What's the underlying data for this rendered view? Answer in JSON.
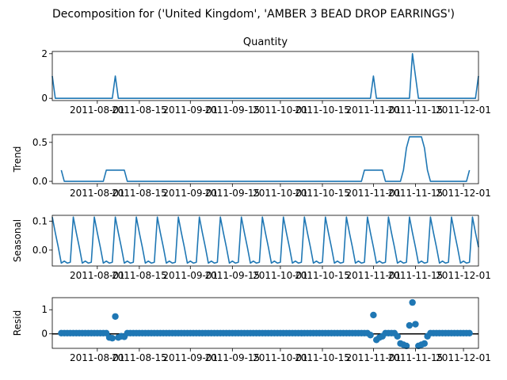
{
  "figure": {
    "suptitle": "Decomposition for ('United Kingdom', 'AMBER 3 BEAD DROP EARRINGS')"
  },
  "colors": {
    "series": "#1f77b4",
    "axes": "#000000",
    "zero_line": "#000000"
  },
  "chart_data": [
    {
      "type": "line",
      "title": "Quantity",
      "ylabel": "",
      "xlim": [
        "2011-07-17",
        "2011-12-06"
      ],
      "ylim": [
        -0.1,
        2.1
      ],
      "x_ticks": [
        "2011-08-01",
        "2011-08-15",
        "2011-09-01",
        "2011-09-15",
        "2011-10-01",
        "2011-10-15",
        "2011-11-01",
        "2011-11-15",
        "2011-12-01"
      ],
      "y_ticks": [
        0,
        2
      ],
      "series": [
        {
          "name": "",
          "points": [
            [
              "2011-07-17",
              1
            ],
            [
              "2011-07-18",
              0
            ],
            [
              "2011-08-06",
              0
            ],
            [
              "2011-08-07",
              1
            ],
            [
              "2011-08-08",
              0
            ],
            [
              "2011-10-31",
              0
            ],
            [
              "2011-11-01",
              1
            ],
            [
              "2011-11-02",
              0
            ],
            [
              "2011-11-13",
              0
            ],
            [
              "2011-11-14",
              2
            ],
            [
              "2011-11-16",
              0
            ],
            [
              "2011-12-05",
              0
            ],
            [
              "2011-12-06",
              1
            ]
          ]
        }
      ]
    },
    {
      "type": "line",
      "title": "",
      "ylabel": "Trend",
      "xlim": [
        "2011-07-17",
        "2011-12-06"
      ],
      "ylim": [
        -0.03,
        0.6
      ],
      "x_ticks": [
        "2011-08-01",
        "2011-08-15",
        "2011-09-01",
        "2011-09-15",
        "2011-10-01",
        "2011-10-15",
        "2011-11-01",
        "2011-11-15",
        "2011-12-01"
      ],
      "y_ticks": [
        0.0,
        0.5
      ],
      "series": [
        {
          "name": "",
          "points": [
            [
              "2011-07-20",
              0.143
            ],
            [
              "2011-07-21",
              0
            ],
            [
              "2011-08-03",
              0
            ],
            [
              "2011-08-04",
              0.143
            ],
            [
              "2011-08-10",
              0.143
            ],
            [
              "2011-08-11",
              0
            ],
            [
              "2011-10-28",
              0
            ],
            [
              "2011-10-29",
              0.143
            ],
            [
              "2011-11-04",
              0.143
            ],
            [
              "2011-11-05",
              0
            ],
            [
              "2011-11-10",
              0
            ],
            [
              "2011-11-11",
              0.143
            ],
            [
              "2011-11-12",
              0.429
            ],
            [
              "2011-11-13",
              0.571
            ],
            [
              "2011-11-17",
              0.571
            ],
            [
              "2011-11-18",
              0.429
            ],
            [
              "2011-11-19",
              0.143
            ],
            [
              "2011-11-20",
              0
            ],
            [
              "2011-12-02",
              0
            ],
            [
              "2011-12-03",
              0.143
            ]
          ]
        }
      ]
    },
    {
      "type": "line",
      "title": "",
      "ylabel": "Seasonal",
      "xlim": [
        "2011-07-17",
        "2011-12-06"
      ],
      "ylim": [
        -0.055,
        0.12
      ],
      "x_ticks": [
        "2011-08-01",
        "2011-08-15",
        "2011-09-01",
        "2011-09-15",
        "2011-10-01",
        "2011-10-15",
        "2011-11-01",
        "2011-11-15",
        "2011-12-01"
      ],
      "y_ticks": [
        0.0,
        0.1
      ],
      "weekly_pattern": [
        0.114,
        0.06,
        0.01,
        -0.045,
        -0.038,
        -0.045,
        -0.042
      ],
      "pattern_start": "2011-07-17",
      "series": [
        {
          "name": "",
          "generated_from": "weekly_pattern"
        }
      ]
    },
    {
      "type": "scatter",
      "title": "",
      "ylabel": "Resid",
      "xlim": [
        "2011-07-17",
        "2011-12-06"
      ],
      "ylim": [
        -0.6,
        1.5
      ],
      "x_ticks": [
        "2011-08-01",
        "2011-08-15",
        "2011-09-01",
        "2011-09-15",
        "2011-10-01",
        "2011-10-15",
        "2011-11-01",
        "2011-11-15",
        "2011-12-01"
      ],
      "y_ticks": [
        0,
        1
      ],
      "zero_line": true,
      "default_value": 0.03,
      "overrides": [
        [
          "2011-08-05",
          -0.15
        ],
        [
          "2011-08-06",
          -0.18
        ],
        [
          "2011-08-07",
          0.72
        ],
        [
          "2011-08-08",
          -0.15
        ],
        [
          "2011-08-09",
          -0.1
        ],
        [
          "2011-08-10",
          -0.12
        ],
        [
          "2011-10-31",
          -0.05
        ],
        [
          "2011-11-01",
          0.78
        ],
        [
          "2011-11-02",
          -0.25
        ],
        [
          "2011-11-03",
          -0.15
        ],
        [
          "2011-11-04",
          -0.1
        ],
        [
          "2011-11-09",
          -0.1
        ],
        [
          "2011-11-10",
          -0.4
        ],
        [
          "2011-11-11",
          -0.45
        ],
        [
          "2011-11-12",
          -0.5
        ],
        [
          "2011-11-13",
          0.35
        ],
        [
          "2011-11-14",
          1.3
        ],
        [
          "2011-11-15",
          0.4
        ],
        [
          "2011-11-16",
          -0.5
        ],
        [
          "2011-11-17",
          -0.45
        ],
        [
          "2011-11-18",
          -0.4
        ],
        [
          "2011-11-19",
          -0.1
        ]
      ],
      "x_range": [
        "2011-07-20",
        "2011-12-03"
      ],
      "series": [
        {
          "name": "",
          "generated_from": "default_value+overrides"
        }
      ]
    }
  ]
}
